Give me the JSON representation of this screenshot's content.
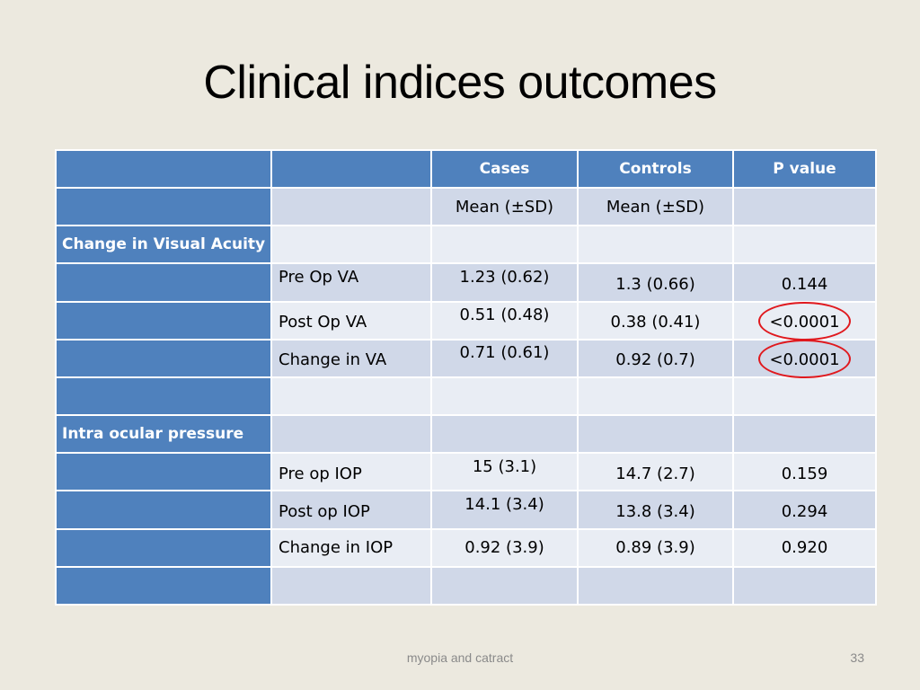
{
  "title": "Clinical indices outcomes",
  "table": {
    "header": [
      "",
      "",
      "Cases",
      "Controls",
      "P value"
    ],
    "subheader": [
      "",
      "",
      "Mean (±SD)",
      "Mean (±SD)",
      ""
    ],
    "rows": [
      {
        "section": "Change in Visual Acuity",
        "label": "",
        "cases": "",
        "controls": "",
        "p": ""
      },
      {
        "section": "",
        "label": "Pre Op VA",
        "cases": "1.23 (0.62)",
        "controls": "1.3 (0.66)",
        "p": "0.144"
      },
      {
        "section": "",
        "label": "Post Op VA",
        "cases": "0.51 (0.48)",
        "controls": "0.38 (0.41)",
        "p": "<0.0001"
      },
      {
        "section": "",
        "label": "Change in VA",
        "cases": "0.71 (0.61)",
        "controls": "0.92 (0.7)",
        "p": "<0.0001"
      },
      {
        "section": "",
        "label": "",
        "cases": "",
        "controls": "",
        "p": ""
      },
      {
        "section": "Intra ocular pressure",
        "label": "",
        "cases": "",
        "controls": "",
        "p": ""
      },
      {
        "section": "",
        "label": "Pre op IOP",
        "cases": "15 (3.1)",
        "controls": "14.7 (2.7)",
        "p": "0.159"
      },
      {
        "section": "",
        "label": "Post op IOP",
        "cases": "14.1 (3.4)",
        "controls": "13.8 (3.4)",
        "p": "0.294"
      },
      {
        "section": "",
        "label": "Change in IOP",
        "cases": "0.92 (3.9)",
        "controls": "0.89 (3.9)",
        "p": "0.920"
      },
      {
        "section": "",
        "label": "",
        "cases": "",
        "controls": "",
        "p": ""
      }
    ]
  },
  "highlight_color": "#E0191E",
  "header_color": "#4F81BD",
  "footer": "myopia and catract",
  "page_number": "33"
}
